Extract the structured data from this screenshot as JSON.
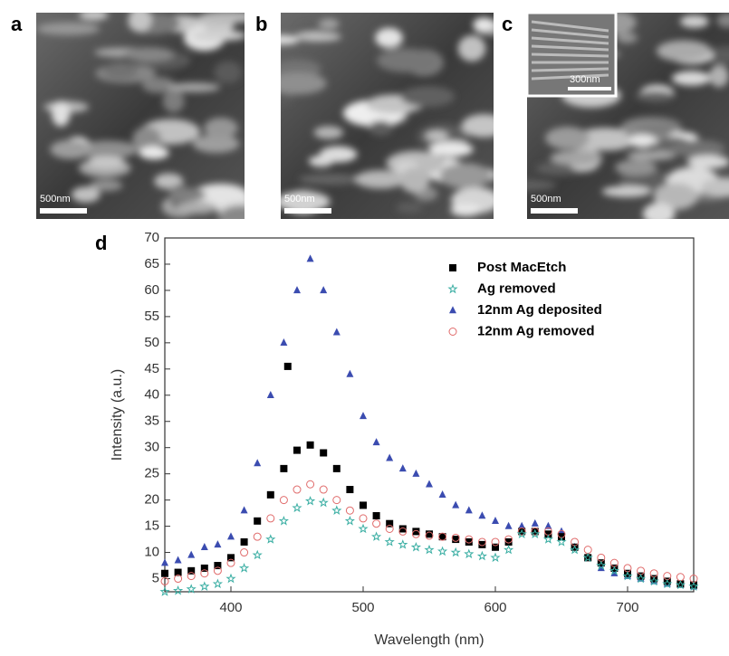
{
  "panels": [
    {
      "label": "a",
      "scale_bar": "500nm"
    },
    {
      "label": "b",
      "scale_bar": "500nm"
    },
    {
      "label": "c",
      "scale_bar": "500nm",
      "inset_scale_bar": "300nm"
    }
  ],
  "chart_data": {
    "type": "scatter",
    "panel_label": "d",
    "x_label": "Wavelength (nm)",
    "y_label": "Intensity (a.u.)",
    "xlim": [
      350,
      750
    ],
    "xticks": [
      400,
      500,
      600,
      700
    ],
    "ylim": [
      2.5,
      70
    ],
    "yticks": [
      5,
      10,
      15,
      20,
      25,
      30,
      35,
      40,
      45,
      50,
      55,
      60,
      65,
      70
    ],
    "legend": "upper right",
    "x": [
      350,
      360,
      370,
      380,
      390,
      400,
      410,
      420,
      430,
      440,
      450,
      460,
      470,
      480,
      490,
      500,
      510,
      520,
      530,
      540,
      550,
      560,
      570,
      580,
      590,
      600,
      610,
      620,
      630,
      640,
      650,
      660,
      670,
      680,
      690,
      700,
      710,
      720,
      730,
      740,
      750
    ],
    "series": [
      {
        "name": "Post MacEtch",
        "color": "#000000",
        "marker": "square",
        "x": [
          350,
          360,
          370,
          380,
          390,
          400,
          410,
          420,
          430,
          440,
          443,
          450,
          460,
          470,
          480,
          490,
          500,
          510,
          520,
          530,
          540,
          550,
          560,
          570,
          580,
          590,
          600,
          610,
          620,
          630,
          640,
          650,
          660,
          670,
          680,
          690,
          700,
          710,
          720,
          730,
          740,
          750
        ],
        "values": [
          6,
          6.2,
          6.5,
          7,
          7.5,
          9,
          12,
          16,
          21,
          26,
          45.5,
          29.5,
          30.5,
          29,
          26,
          22,
          19,
          17,
          15.5,
          14.5,
          14,
          13.5,
          13,
          12.5,
          12,
          11.5,
          11,
          12,
          14,
          14,
          13.5,
          13,
          11,
          9,
          8,
          7,
          6,
          5.5,
          5,
          4.5,
          4,
          3.8
        ]
      },
      {
        "name": "Ag removed",
        "color": "#3aaea3",
        "marker": "star",
        "values": [
          2.5,
          2.7,
          3,
          3.5,
          4,
          5,
          7,
          9.5,
          12.5,
          16,
          18.5,
          19.8,
          19.5,
          18,
          16,
          14.5,
          13,
          12,
          11.5,
          11,
          10.5,
          10.2,
          10,
          9.7,
          9.3,
          9,
          10.5,
          13.5,
          13.5,
          12.5,
          12,
          10.5,
          9,
          7.5,
          6.5,
          5.5,
          5,
          4.5,
          4,
          3.8,
          3.5
        ]
      },
      {
        "name": "12nm Ag deposited",
        "color": "#3b4cb0",
        "marker": "triangle",
        "values": [
          8,
          8.5,
          9.5,
          11,
          11.5,
          13,
          18,
          27,
          40,
          50,
          60,
          66,
          60,
          52,
          44,
          36,
          31,
          28,
          26,
          25,
          23,
          21,
          19,
          18,
          17,
          16,
          15,
          15,
          15.5,
          15,
          14,
          11,
          9,
          7,
          6,
          5.5,
          5,
          4.5,
          4,
          3.8,
          3.5
        ]
      },
      {
        "name": "12nm Ag removed",
        "color": "#e06a6a",
        "marker": "circle",
        "values": [
          4.5,
          5,
          5.5,
          6,
          6.5,
          8,
          10,
          13,
          16.5,
          20,
          22,
          23,
          22,
          20,
          18,
          16.5,
          15.5,
          14.5,
          14,
          13.5,
          13.2,
          13,
          12.8,
          12.5,
          12,
          12,
          12.5,
          14,
          14,
          14,
          13.5,
          12,
          10.5,
          9,
          8,
          7,
          6.5,
          6,
          5.5,
          5.3,
          5
        ]
      }
    ]
  }
}
